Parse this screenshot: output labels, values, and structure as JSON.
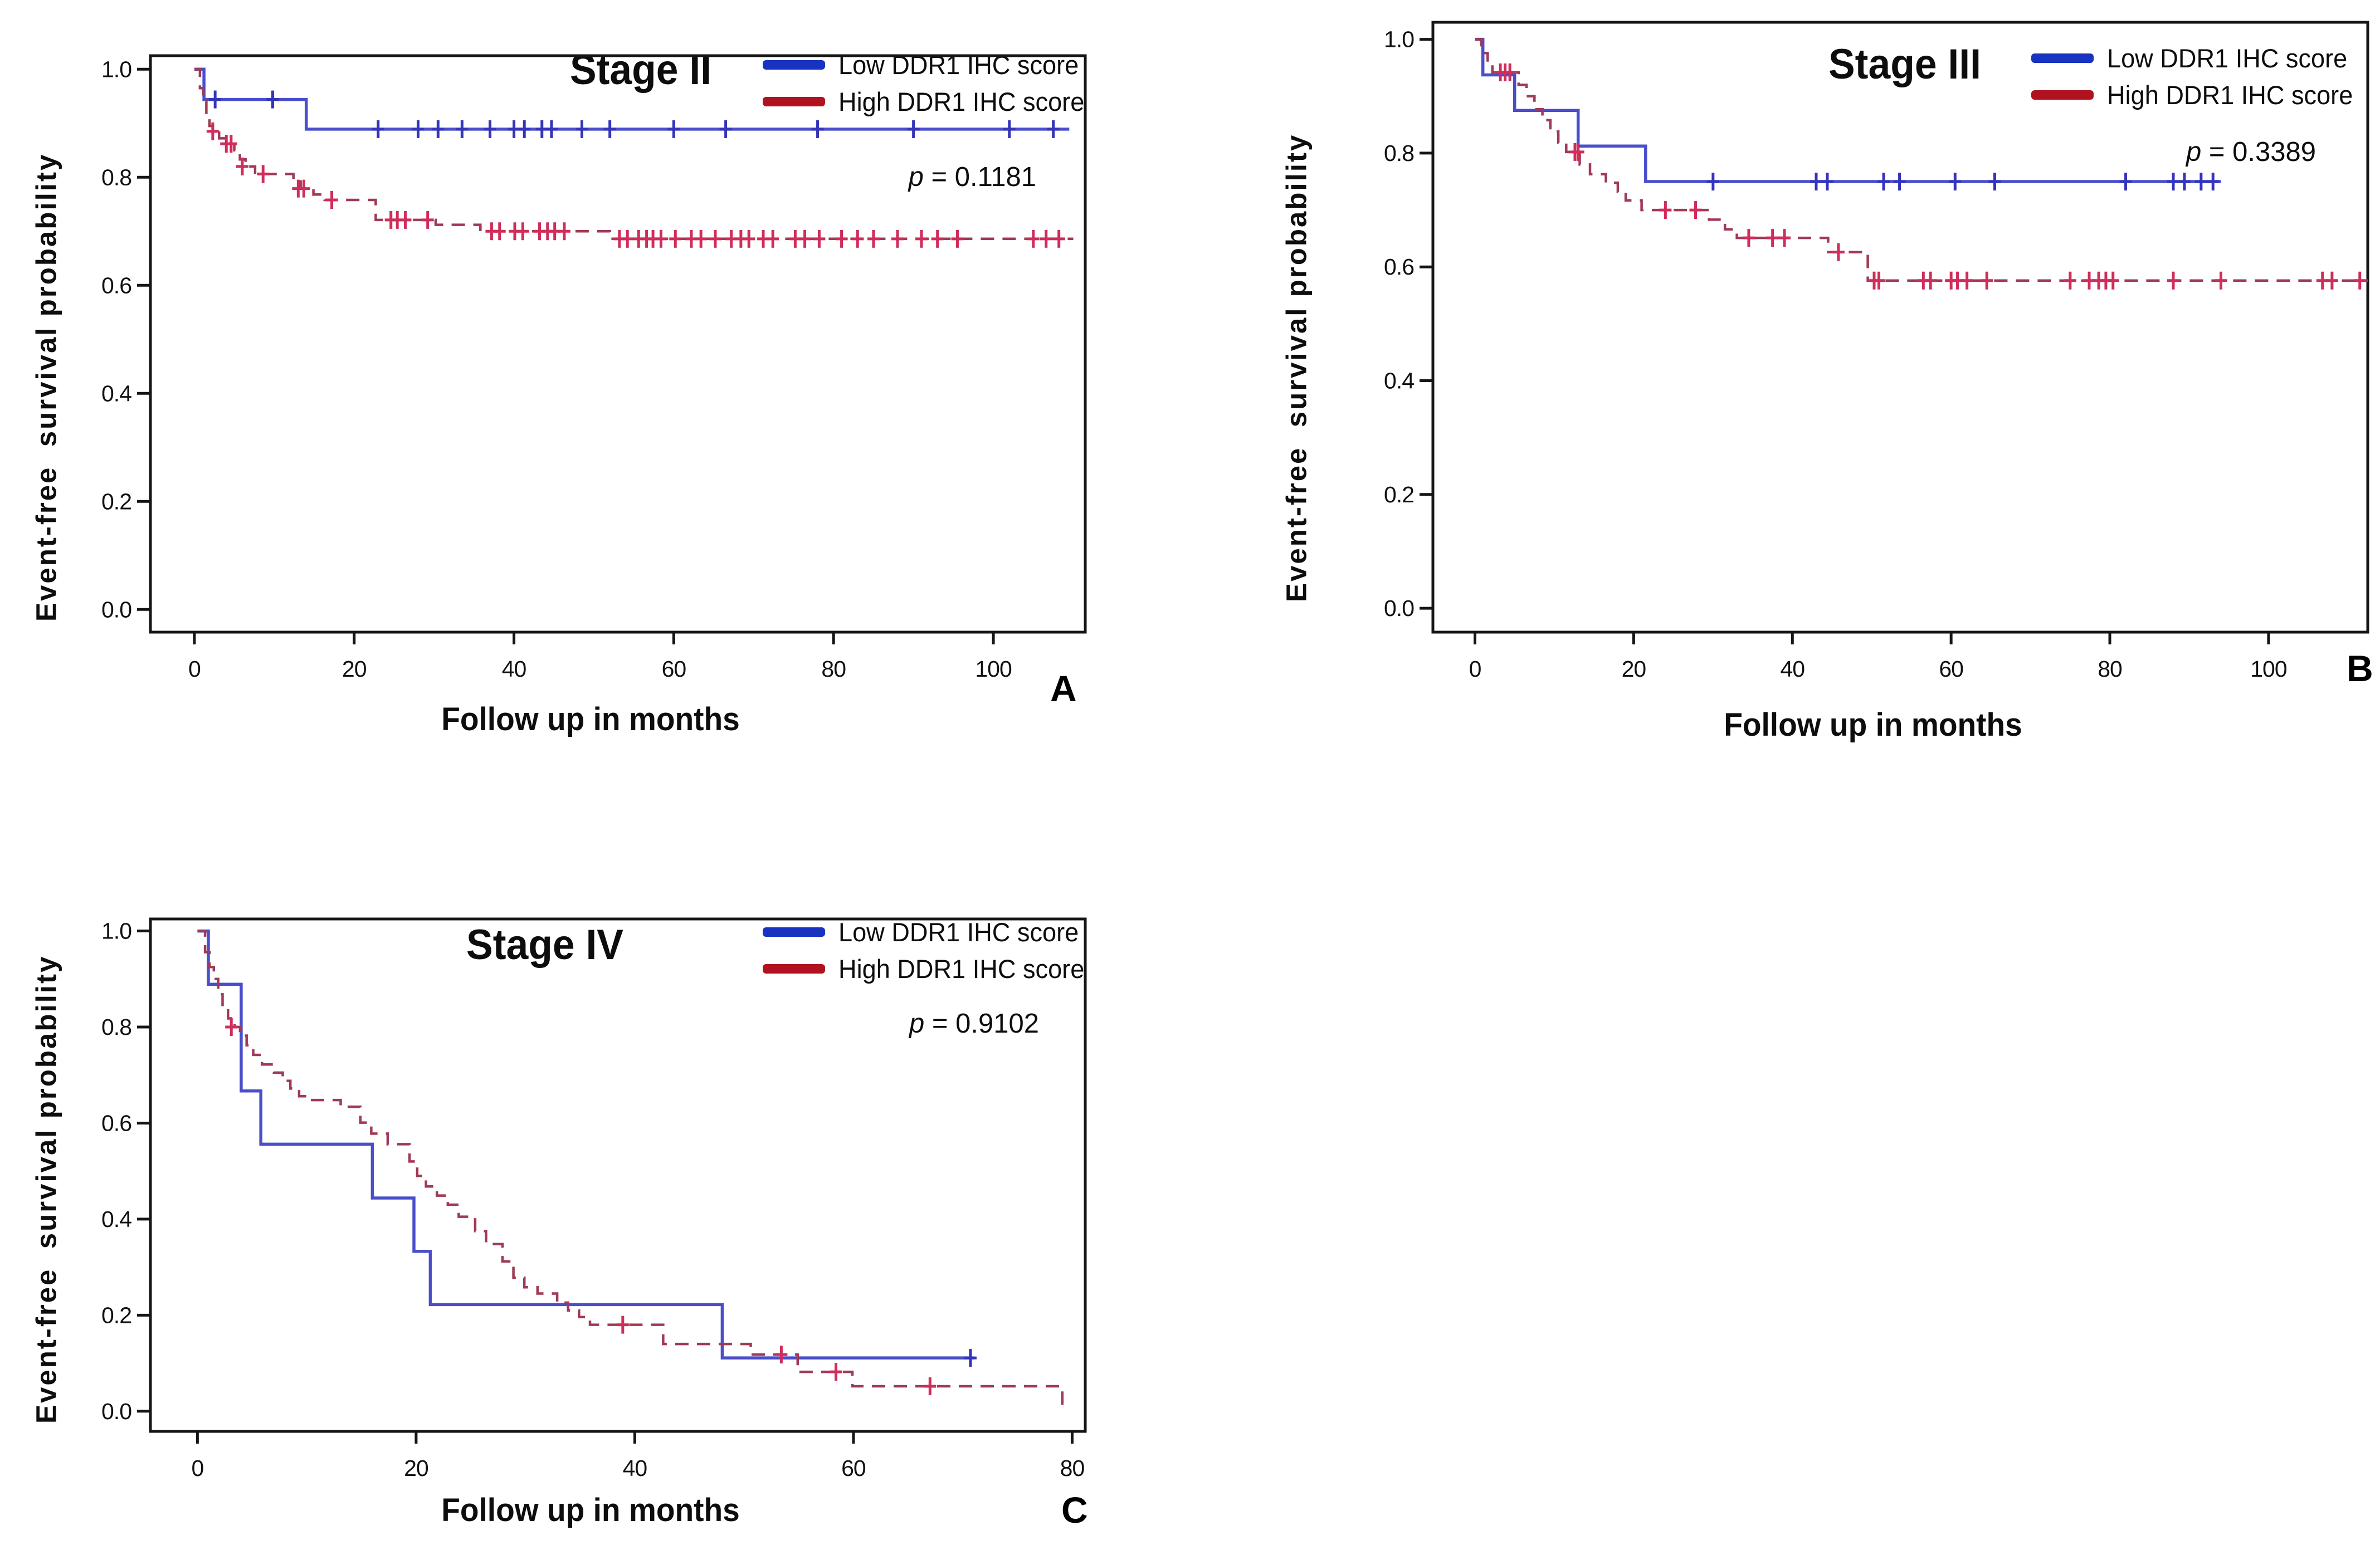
{
  "figure": {
    "background": "#ffffff",
    "axis_color": "#151515",
    "panel_letters": [
      "A",
      "B",
      "C"
    ]
  },
  "chart_data": [
    {
      "type": "line",
      "subtype": "kaplan-meier-step",
      "panel_label": "A",
      "title": "Stage II",
      "p_symbol": "p",
      "p_rest": " = 0.1181",
      "xlabel": "Follow up in months",
      "ylabel": "Event-free  survival probability",
      "xlim": [
        -5.5,
        111.5
      ],
      "ylim": [
        -0.042,
        1.025
      ],
      "xticks": [
        0,
        20,
        40,
        60,
        80,
        100
      ],
      "yticks": [
        0.0,
        0.2,
        0.4,
        0.6,
        0.8,
        1.0
      ],
      "ytick_labels": [
        "0.0",
        "0.2",
        "0.4",
        "0.6",
        "0.8",
        "1.0"
      ],
      "axis_color": "#151515",
      "grid": false,
      "legend_position": "top-right",
      "legend": [
        {
          "label": "Low DDR1 IHC score",
          "swatch_color": "#1733c0"
        },
        {
          "label": "High DDR1 IHC score",
          "swatch_color": "#b0121f"
        }
      ],
      "series": [
        {
          "name": "Low DDR1 IHC score",
          "color": "#4a4ecb",
          "censor_color": "#3434bb",
          "dashed": false,
          "steps": [
            [
              0,
              1.0
            ],
            [
              1.2,
              0.944
            ],
            [
              14,
              0.889
            ],
            [
              109.5,
              0.889
            ]
          ],
          "censors": [
            [
              2.6,
              0.944
            ],
            [
              9.8,
              0.944
            ],
            [
              23,
              0.889
            ],
            [
              28,
              0.889
            ],
            [
              30.5,
              0.889
            ],
            [
              33.5,
              0.889
            ],
            [
              37,
              0.889
            ],
            [
              40,
              0.889
            ],
            [
              41.3,
              0.889
            ],
            [
              43.5,
              0.889
            ],
            [
              44.7,
              0.889
            ],
            [
              48.5,
              0.889
            ],
            [
              52,
              0.889
            ],
            [
              60,
              0.889
            ],
            [
              66.5,
              0.889
            ],
            [
              78,
              0.889
            ],
            [
              90,
              0.889
            ],
            [
              102,
              0.889
            ],
            [
              107.5,
              0.889
            ]
          ]
        },
        {
          "name": "High DDR1 IHC score",
          "color": "#a03a55",
          "censor_color": "#cf2d5a",
          "dashed": true,
          "steps": [
            [
              0,
              1.0
            ],
            [
              0.7,
              0.965
            ],
            [
              1.1,
              0.94
            ],
            [
              1.5,
              0.915
            ],
            [
              1.9,
              0.895
            ],
            [
              2.3,
              0.885
            ],
            [
              3.1,
              0.872
            ],
            [
              4.2,
              0.862
            ],
            [
              5.0,
              0.85
            ],
            [
              5.7,
              0.833
            ],
            [
              6.4,
              0.82
            ],
            [
              7.6,
              0.806
            ],
            [
              12.4,
              0.792
            ],
            [
              13.3,
              0.779
            ],
            [
              14.9,
              0.768
            ],
            [
              16.3,
              0.758
            ],
            [
              22.7,
              0.721
            ],
            [
              30.2,
              0.712
            ],
            [
              35.8,
              0.7
            ],
            [
              52,
              0.686
            ],
            [
              110,
              0.686
            ]
          ],
          "censors": [
            [
              2.3,
              0.885
            ],
            [
              4.0,
              0.862
            ],
            [
              4.6,
              0.862
            ],
            [
              6.0,
              0.82
            ],
            [
              8.6,
              0.806
            ],
            [
              13.0,
              0.779
            ],
            [
              13.7,
              0.779
            ],
            [
              17.2,
              0.758
            ],
            [
              24.6,
              0.721
            ],
            [
              25.4,
              0.721
            ],
            [
              26.4,
              0.721
            ],
            [
              29.2,
              0.721
            ],
            [
              37.2,
              0.7
            ],
            [
              38.2,
              0.7
            ],
            [
              40.1,
              0.7
            ],
            [
              41.1,
              0.7
            ],
            [
              43.2,
              0.7
            ],
            [
              44.2,
              0.7
            ],
            [
              45.1,
              0.7
            ],
            [
              46.3,
              0.7
            ],
            [
              53.2,
              0.686
            ],
            [
              54.2,
              0.686
            ],
            [
              55.6,
              0.686
            ],
            [
              56.6,
              0.686
            ],
            [
              57.4,
              0.686
            ],
            [
              58.4,
              0.686
            ],
            [
              60.2,
              0.686
            ],
            [
              62.2,
              0.686
            ],
            [
              63.4,
              0.686
            ],
            [
              65.2,
              0.686
            ],
            [
              67.2,
              0.686
            ],
            [
              68.4,
              0.686
            ],
            [
              69.4,
              0.686
            ],
            [
              71.2,
              0.686
            ],
            [
              72.4,
              0.686
            ],
            [
              75.2,
              0.686
            ],
            [
              76.4,
              0.686
            ],
            [
              78.2,
              0.686
            ],
            [
              81,
              0.686
            ],
            [
              83,
              0.686
            ],
            [
              85,
              0.686
            ],
            [
              88,
              0.686
            ],
            [
              91,
              0.686
            ],
            [
              93,
              0.686
            ],
            [
              95.5,
              0.686
            ],
            [
              105,
              0.686
            ],
            [
              106.6,
              0.686
            ],
            [
              108.2,
              0.686
            ]
          ]
        }
      ]
    },
    {
      "type": "line",
      "subtype": "kaplan-meier-step",
      "panel_label": "B",
      "title": "Stage III",
      "p_symbol": "p",
      "p_rest": " = 0.3389",
      "xlabel": "Follow up in months",
      "ylabel": "Event-free  survival probability",
      "xlim": [
        -5.3,
        112.5
      ],
      "ylim": [
        -0.042,
        1.03
      ],
      "xticks": [
        0,
        20,
        40,
        60,
        80,
        100
      ],
      "yticks": [
        0.0,
        0.2,
        0.4,
        0.6,
        0.8,
        1.0
      ],
      "ytick_labels": [
        "0.0",
        "0.2",
        "0.4",
        "0.6",
        "0.8",
        "1.0"
      ],
      "axis_color": "#151515",
      "grid": false,
      "legend_position": "top-right",
      "legend": [
        {
          "label": "Low DDR1 IHC score",
          "swatch_color": "#1733c0"
        },
        {
          "label": "High DDR1 IHC score",
          "swatch_color": "#b0121f"
        }
      ],
      "series": [
        {
          "name": "Low DDR1 IHC score",
          "color": "#4a4ecb",
          "censor_color": "#3434bb",
          "dashed": false,
          "steps": [
            [
              0,
              1.0
            ],
            [
              1,
              0.9375
            ],
            [
              5,
              0.875
            ],
            [
              13,
              0.8125
            ],
            [
              21.5,
              0.75
            ],
            [
              94,
              0.75
            ]
          ],
          "censors": [
            [
              30,
              0.75
            ],
            [
              43,
              0.75
            ],
            [
              44.4,
              0.75
            ],
            [
              51.5,
              0.75
            ],
            [
              53.5,
              0.75
            ],
            [
              60.5,
              0.75
            ],
            [
              65.5,
              0.75
            ],
            [
              82,
              0.75
            ],
            [
              88,
              0.75
            ],
            [
              89.4,
              0.75
            ],
            [
              91.5,
              0.75
            ],
            [
              93,
              0.75
            ]
          ]
        },
        {
          "name": "High DDR1 IHC score",
          "color": "#a03a55",
          "censor_color": "#cf2d5a",
          "dashed": true,
          "steps": [
            [
              0,
              1.0
            ],
            [
              0.8,
              0.976
            ],
            [
              1.6,
              0.955
            ],
            [
              2.2,
              0.942
            ],
            [
              5.5,
              0.92
            ],
            [
              6.5,
              0.9
            ],
            [
              7.5,
              0.877
            ],
            [
              8.5,
              0.858
            ],
            [
              9.5,
              0.838
            ],
            [
              10.5,
              0.818
            ],
            [
              11.5,
              0.802
            ],
            [
              13.2,
              0.78
            ],
            [
              14.5,
              0.763
            ],
            [
              16.5,
              0.748
            ],
            [
              18,
              0.732
            ],
            [
              19,
              0.717
            ],
            [
              21,
              0.7
            ],
            [
              29.5,
              0.683
            ],
            [
              31.5,
              0.666
            ],
            [
              33,
              0.651
            ],
            [
              44.5,
              0.626
            ],
            [
              49.5,
              0.576
            ],
            [
              112.5,
              0.576
            ]
          ],
          "censors": [
            [
              3.2,
              0.942
            ],
            [
              3.8,
              0.942
            ],
            [
              4.4,
              0.942
            ],
            [
              12.6,
              0.802
            ],
            [
              13.0,
              0.802
            ],
            [
              24,
              0.7
            ],
            [
              27.8,
              0.7
            ],
            [
              34.5,
              0.651
            ],
            [
              37.5,
              0.651
            ],
            [
              39,
              0.651
            ],
            [
              45.8,
              0.626
            ],
            [
              50.3,
              0.576
            ],
            [
              50.9,
              0.576
            ],
            [
              56.5,
              0.576
            ],
            [
              57.4,
              0.576
            ],
            [
              60,
              0.576
            ],
            [
              60.8,
              0.576
            ],
            [
              62,
              0.576
            ],
            [
              64.5,
              0.576
            ],
            [
              75,
              0.576
            ],
            [
              77.4,
              0.576
            ],
            [
              78.6,
              0.576
            ],
            [
              79.5,
              0.576
            ],
            [
              80.4,
              0.576
            ],
            [
              88,
              0.576
            ],
            [
              94,
              0.576
            ],
            [
              106.8,
              0.576
            ],
            [
              108,
              0.576
            ],
            [
              111.5,
              0.576
            ]
          ]
        }
      ]
    },
    {
      "type": "line",
      "subtype": "kaplan-meier-step",
      "panel_label": "C",
      "title": "Stage IV",
      "p_symbol": "p",
      "p_rest": " = 0.9102",
      "xlabel": "Follow up in months",
      "ylabel": "Event-free  survival probability",
      "xlim": [
        -4.3,
        81.2
      ],
      "ylim": [
        -0.042,
        1.025
      ],
      "xticks": [
        0,
        20,
        40,
        60,
        80
      ],
      "yticks": [
        0.0,
        0.2,
        0.4,
        0.6,
        0.8,
        1.0
      ],
      "ytick_labels": [
        "0.0",
        "0.2",
        "0.4",
        "0.6",
        "0.8",
        "1.0"
      ],
      "axis_color": "#151515",
      "grid": false,
      "legend_position": "top-right",
      "legend": [
        {
          "label": "Low DDR1 IHC score",
          "swatch_color": "#1733c0"
        },
        {
          "label": "High DDR1 IHC score",
          "swatch_color": "#b0121f"
        }
      ],
      "series": [
        {
          "name": "Low DDR1 IHC score",
          "color": "#4a4ecb",
          "censor_color": "#3434bb",
          "dashed": false,
          "steps": [
            [
              0,
              1.0
            ],
            [
              1,
              0.889
            ],
            [
              4,
              0.667
            ],
            [
              5.8,
              0.556
            ],
            [
              16,
              0.444
            ],
            [
              19.8,
              0.333
            ],
            [
              21.3,
              0.222
            ],
            [
              48,
              0.111
            ],
            [
              71,
              0.111
            ]
          ],
          "censors": [
            [
              70.7,
              0.111
            ]
          ]
        },
        {
          "name": "High DDR1 IHC score",
          "color": "#a03a55",
          "censor_color": "#cf2d5a",
          "dashed": true,
          "steps": [
            [
              0,
              1.0
            ],
            [
              0.7,
              0.956
            ],
            [
              1.1,
              0.925
            ],
            [
              1.5,
              0.9
            ],
            [
              1.9,
              0.868
            ],
            [
              2.3,
              0.84
            ],
            [
              2.8,
              0.818
            ],
            [
              3.4,
              0.8
            ],
            [
              3.9,
              0.782
            ],
            [
              4.5,
              0.762
            ],
            [
              5.1,
              0.742
            ],
            [
              5.9,
              0.722
            ],
            [
              7.0,
              0.705
            ],
            [
              7.8,
              0.688
            ],
            [
              8.5,
              0.672
            ],
            [
              9.3,
              0.656
            ],
            [
              10.1,
              0.648
            ],
            [
              13.1,
              0.634
            ],
            [
              14.9,
              0.601
            ],
            [
              15.9,
              0.578
            ],
            [
              17.4,
              0.556
            ],
            [
              19.4,
              0.52
            ],
            [
              20.1,
              0.49
            ],
            [
              20.9,
              0.468
            ],
            [
              21.9,
              0.449
            ],
            [
              22.9,
              0.43
            ],
            [
              23.9,
              0.405
            ],
            [
              25.4,
              0.375
            ],
            [
              26.4,
              0.348
            ],
            [
              27.9,
              0.312
            ],
            [
              28.9,
              0.278
            ],
            [
              29.9,
              0.258
            ],
            [
              31.1,
              0.245
            ],
            [
              32.9,
              0.226
            ],
            [
              33.9,
              0.21
            ],
            [
              34.9,
              0.196
            ],
            [
              35.9,
              0.18
            ],
            [
              42.6,
              0.14
            ],
            [
              50.6,
              0.118
            ],
            [
              54.9,
              0.082
            ],
            [
              59.9,
              0.052
            ],
            [
              78.8,
              0.052
            ],
            [
              79.1,
              0.002
            ]
          ],
          "censors": [
            [
              3.1,
              0.8
            ],
            [
              38.9,
              0.18
            ],
            [
              53.4,
              0.118
            ],
            [
              58.4,
              0.082
            ],
            [
              67,
              0.052
            ]
          ]
        }
      ]
    }
  ]
}
